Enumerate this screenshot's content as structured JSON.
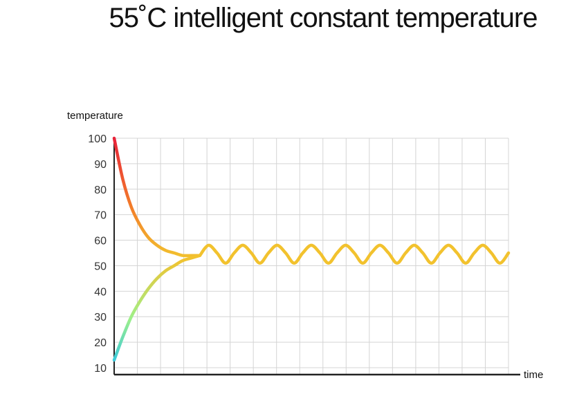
{
  "title": "55˚C intelligent constant temperature",
  "chart_data": {
    "type": "line",
    "title": "55˚C intelligent constant temperature",
    "xlabel": "time",
    "ylabel": "temperature",
    "y_ticks": [
      "100",
      "90",
      "80",
      "70",
      "60",
      "50",
      "40",
      "30",
      "20",
      "10"
    ],
    "ylim": [
      10,
      100
    ],
    "grid": true,
    "series": [
      {
        "x": [
          0,
          1,
          2,
          3,
          4,
          5,
          6,
          7,
          8,
          9,
          10
        ],
        "values": [
          100,
          84,
          73,
          66,
          61,
          58,
          56,
          55,
          54,
          54,
          54
        ],
        "color_start": "#e8233a",
        "color_end": "#f2c22e"
      },
      {
        "x": [
          0,
          1,
          2,
          3,
          4,
          5,
          6,
          7,
          8,
          9,
          10
        ],
        "values": [
          13,
          22,
          30,
          36,
          41,
          45,
          48,
          50,
          52,
          53,
          54
        ],
        "color_start": "#29c3e8",
        "color_end": "#f2c22e"
      },
      {
        "x": [
          10,
          11,
          12,
          13,
          14,
          15,
          16,
          17,
          18,
          19,
          20,
          21,
          22,
          23,
          24,
          25,
          26,
          27,
          28,
          29,
          30,
          31,
          32,
          33,
          34,
          35,
          36,
          37,
          38,
          39,
          40,
          41,
          42,
          43,
          44,
          45,
          46
        ],
        "values": [
          54,
          58,
          55,
          51,
          55,
          58,
          55,
          51,
          55,
          58,
          55,
          51,
          55,
          58,
          55,
          51,
          55,
          58,
          55,
          51,
          55,
          58,
          55,
          51,
          55,
          58,
          55,
          51,
          55,
          58,
          55,
          51,
          55,
          58,
          55,
          51,
          55
        ],
        "color": "#f2c22e"
      }
    ]
  }
}
